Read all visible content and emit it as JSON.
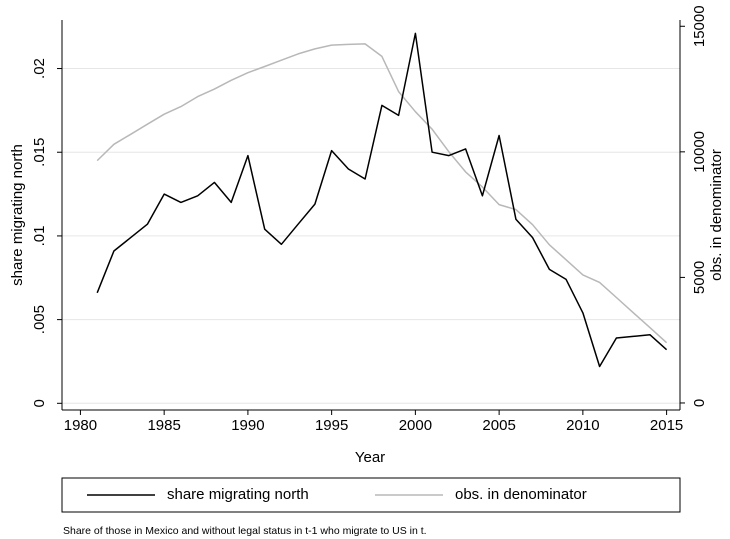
{
  "chart_data": {
    "type": "line",
    "x_label": "Year",
    "y_label": "share migrating north",
    "y2_label": "obs. in denominator",
    "note": "Share of those in Mexico and without legal status in t-1 who migrate to US in t.",
    "x": [
      1981,
      1982,
      1983,
      1984,
      1985,
      1986,
      1987,
      1988,
      1989,
      1990,
      1991,
      1992,
      1993,
      1994,
      1995,
      1996,
      1997,
      1998,
      1999,
      2000,
      2001,
      2002,
      2003,
      2004,
      2005,
      2006,
      2007,
      2008,
      2009,
      2010,
      2011,
      2012,
      2013,
      2014,
      2015
    ],
    "series": [
      {
        "name": "share migrating north",
        "color": "#000000",
        "values": [
          0.0066,
          0.0091,
          0.0099,
          0.0107,
          0.0125,
          0.012,
          0.0124,
          0.0132,
          0.012,
          0.0148,
          0.0104,
          0.0095,
          0.0107,
          0.0119,
          0.0151,
          0.014,
          0.0134,
          0.0178,
          0.0172,
          0.0221,
          0.015,
          0.0148,
          0.0152,
          0.0124,
          0.016,
          0.011,
          0.0099,
          0.008,
          0.0074,
          0.0054,
          0.0022,
          0.0039,
          0.004,
          0.0041,
          0.0032
        ]
      },
      {
        "name": "obs. in denominator",
        "color": "#b8b8b8",
        "axis": "y2",
        "values": [
          9650,
          10300,
          10700,
          11100,
          11500,
          11800,
          12200,
          12500,
          12850,
          13150,
          13400,
          13650,
          13900,
          14100,
          14250,
          14280,
          14300,
          13800,
          12400,
          11600,
          10900,
          10000,
          9200,
          8600,
          7900,
          7700,
          7100,
          6300,
          5700,
          5100,
          4800,
          4200,
          3600,
          3000,
          2400
        ]
      }
    ],
    "xlim": [
      1978.9,
      2015.8
    ],
    "xticks": [
      1980,
      1985,
      1990,
      1995,
      2000,
      2005,
      2010,
      2015
    ],
    "ylim": [
      -0.0004,
      0.0229
    ],
    "yticks": [
      0,
      {
        "value": 0.005,
        "label": ".005"
      },
      {
        "value": 0.01,
        "label": ".01"
      },
      {
        "value": 0.015,
        "label": ".015"
      },
      {
        "value": 0.02,
        "label": ".02"
      }
    ],
    "y2lim": [
      -280,
      15250
    ],
    "y2ticks": [
      0,
      5000,
      10000,
      15000
    ],
    "grid": true,
    "legend": "bottom"
  }
}
